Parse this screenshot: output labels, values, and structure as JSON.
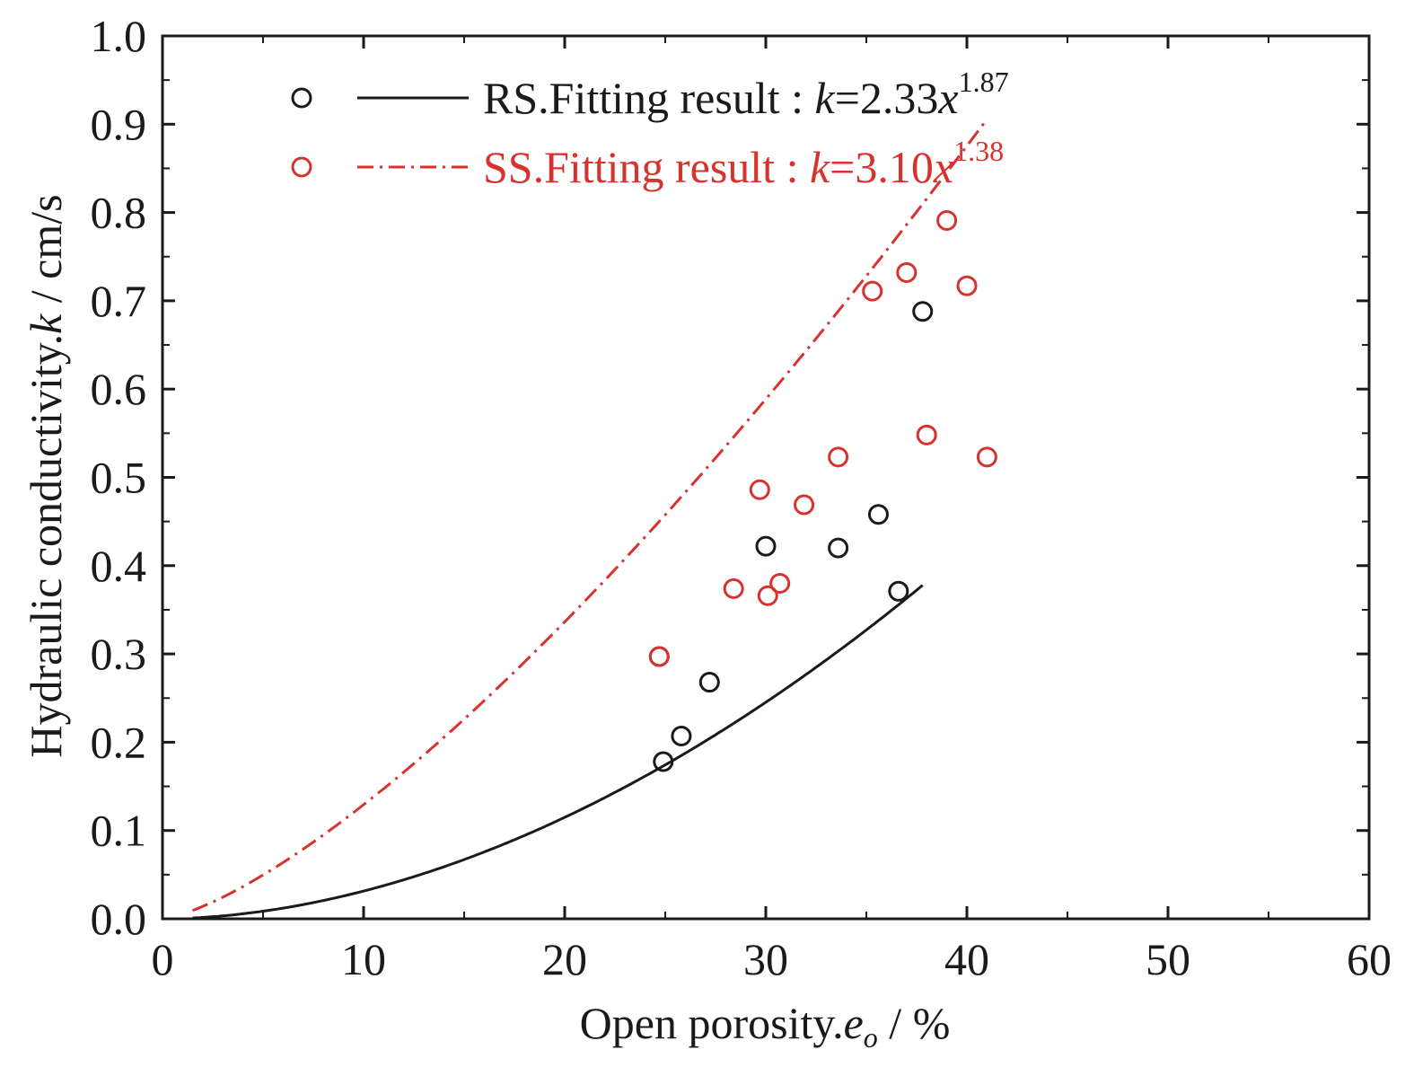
{
  "chart_data": {
    "type": "scatter",
    "xlabel": {
      "prefix": "Open porosity.",
      "var": "e",
      "sub": "o",
      "suffix": " /  %"
    },
    "ylabel": {
      "prefix": "Hydraulic conductivity.",
      "var": "k",
      "suffix": " /  cm/s"
    },
    "xlim": [
      0,
      60
    ],
    "ylim": [
      0,
      1.0
    ],
    "xticks": [
      0,
      10,
      20,
      30,
      40,
      50,
      60
    ],
    "yticks": [
      "0.0",
      "0.1",
      "0.2",
      "0.3",
      "0.4",
      "0.5",
      "0.6",
      "0.7",
      "0.8",
      "0.9",
      "1.0"
    ],
    "legend_position": "top-left",
    "series": [
      {
        "name": "RS",
        "color": "#1a1a1a",
        "line_style": "solid",
        "legend_label": "RS.Fitting result : ",
        "legend_k": "k",
        "legend_eq": "=2.33",
        "legend_x": "x",
        "legend_exp": "1.87",
        "fit": {
          "a": 2.33,
          "b": 1.87,
          "x_range": [
            1.5,
            37.8
          ]
        },
        "points": [
          [
            24.7,
            0.297
          ],
          [
            24.9,
            0.178
          ],
          [
            25.8,
            0.207
          ],
          [
            27.2,
            0.268
          ],
          [
            30.0,
            0.422
          ],
          [
            33.6,
            0.42
          ],
          [
            35.6,
            0.458
          ],
          [
            36.6,
            0.371
          ],
          [
            37.8,
            0.688
          ]
        ]
      },
      {
        "name": "SS",
        "color": "#d8322f",
        "line_style": "dashdot",
        "legend_label": "SS.Fitting result : ",
        "legend_k": "k",
        "legend_eq": "=3.10",
        "legend_x": "x",
        "legend_exp": "1.38",
        "fit": {
          "a": 3.1,
          "b": 1.38,
          "x_range": [
            1.5,
            41.0
          ]
        },
        "points": [
          [
            24.7,
            0.297
          ],
          [
            28.4,
            0.374
          ],
          [
            29.7,
            0.486
          ],
          [
            30.1,
            0.366
          ],
          [
            30.7,
            0.38
          ],
          [
            31.9,
            0.469
          ],
          [
            33.6,
            0.523
          ],
          [
            35.3,
            0.711
          ],
          [
            37.0,
            0.732
          ],
          [
            38.0,
            0.548
          ],
          [
            39.0,
            0.791
          ],
          [
            40.0,
            0.717
          ],
          [
            41.0,
            0.523
          ]
        ]
      }
    ]
  }
}
